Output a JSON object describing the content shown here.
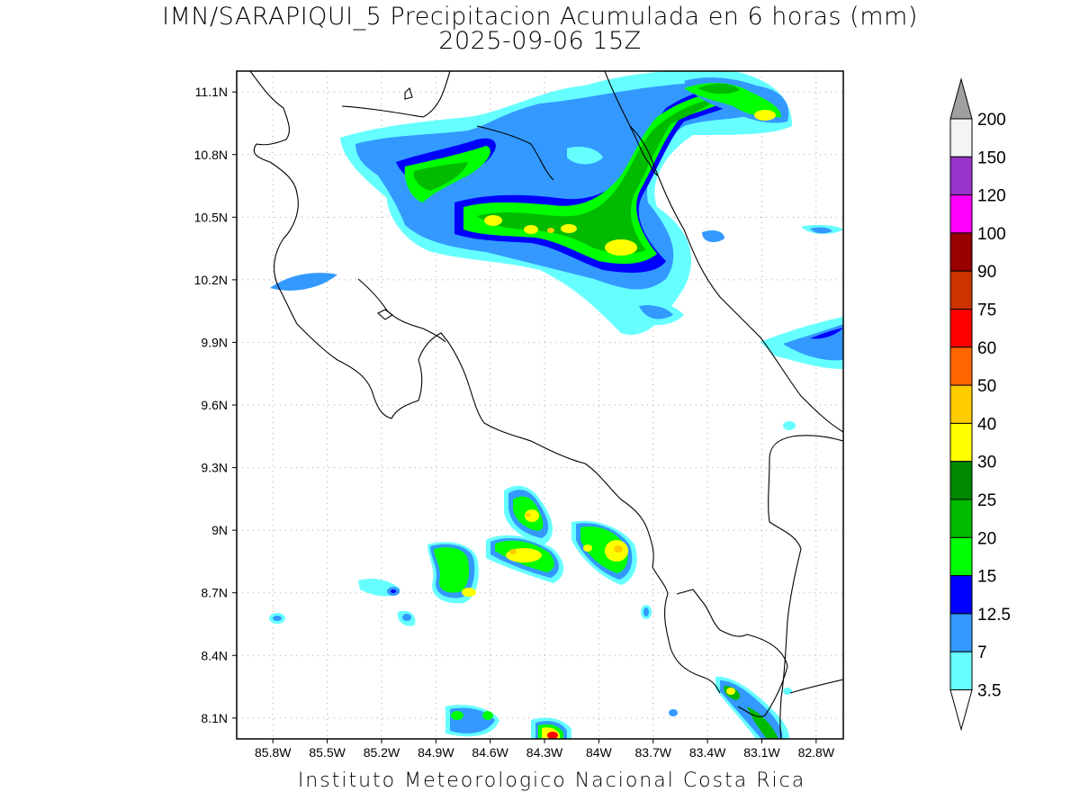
{
  "title_line1": "IMN/SARAPIQUI_5 Precipitacion Acumulada en 6 horas (mm)",
  "title_line2": "2025-09-06 15Z",
  "footer": "Instituto Meteorologico Nacional Costa Rica",
  "map": {
    "lon_range": [
      -86.0,
      -82.65
    ],
    "lat_range": [
      8.0,
      11.2
    ],
    "lat_labels": [
      "11.1N",
      "10.8N",
      "10.5N",
      "10.2N",
      "9.9N",
      "9.6N",
      "9.3N",
      "9N",
      "8.7N",
      "8.4N",
      "8.1N"
    ],
    "lon_labels": [
      "85.8W",
      "85.5W",
      "85.2W",
      "84.9W",
      "84.6W",
      "84.3W",
      "84W",
      "83.7W",
      "83.4W",
      "83.1W",
      "82.8W"
    ]
  },
  "colorbar": {
    "levels": [
      "200",
      "150",
      "120",
      "100",
      "90",
      "75",
      "60",
      "50",
      "40",
      "30",
      "25",
      "20",
      "15",
      "12.5",
      "7",
      "3.5"
    ],
    "colors": [
      "#a0a0a0",
      "#f4f4f4",
      "#9933cc",
      "#ff00ff",
      "#990000",
      "#cc3300",
      "#ff0000",
      "#ff6600",
      "#ffcc00",
      "#ffff00",
      "#008800",
      "#00bb00",
      "#00ff00",
      "#0000ff",
      "#3399ff",
      "#66ffff",
      "#ffffff"
    ]
  }
}
